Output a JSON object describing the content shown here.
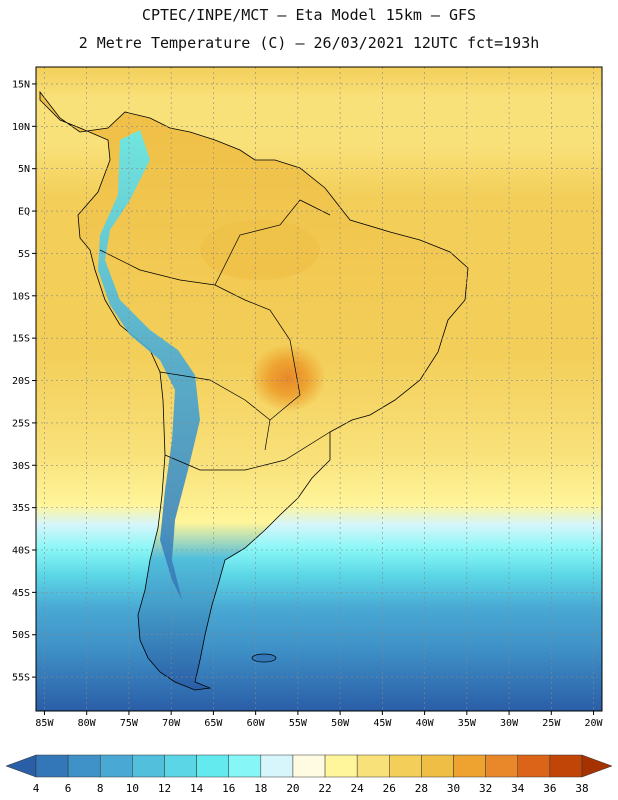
{
  "header": {
    "title_line1": "CPTEC/INPE/MCT –  Eta Model 15km – GFS",
    "title_line2": "2 Metre Temperature (C) – 26/03/2021 12UTC fct=193h"
  },
  "map": {
    "lon_range": [
      -86,
      -19
    ],
    "lat_range": [
      -59,
      17
    ],
    "lat_labels": [
      "15N",
      "10N",
      "5N",
      "EQ",
      "5S",
      "10S",
      "15S",
      "20S",
      "25S",
      "30S",
      "35S",
      "40S",
      "45S",
      "50S",
      "55S"
    ],
    "lat_values": [
      15,
      10,
      5,
      0,
      -5,
      -10,
      -15,
      -20,
      -25,
      -30,
      -35,
      -40,
      -45,
      -50,
      -55
    ],
    "lon_labels": [
      "85W",
      "80W",
      "75W",
      "70W",
      "65W",
      "60W",
      "55W",
      "50W",
      "45W",
      "40W",
      "35W",
      "30W",
      "25W",
      "20W"
    ],
    "lon_values": [
      -85,
      -80,
      -75,
      -70,
      -65,
      -60,
      -55,
      -50,
      -45,
      -40,
      -35,
      -30,
      -25,
      -20
    ]
  },
  "colorbar": {
    "labels": [
      "4",
      "6",
      "8",
      "10",
      "12",
      "14",
      "16",
      "18",
      "20",
      "22",
      "24",
      "26",
      "28",
      "30",
      "32",
      "34",
      "36",
      "38"
    ],
    "colors": [
      "#2a5ea7",
      "#3477b8",
      "#3f92c8",
      "#49a9d4",
      "#52bfdc",
      "#5bd6e6",
      "#63eaef",
      "#86f6f6",
      "#d6f6fb",
      "#fffbe3",
      "#fff59a",
      "#f9e17a",
      "#f3cf5a",
      "#efbe45",
      "#eea330",
      "#e8882a",
      "#dc6418",
      "#c24508",
      "#a53200"
    ]
  },
  "colors": {
    "frame": "#000000",
    "grid": "#888888",
    "coast": "#000000"
  }
}
